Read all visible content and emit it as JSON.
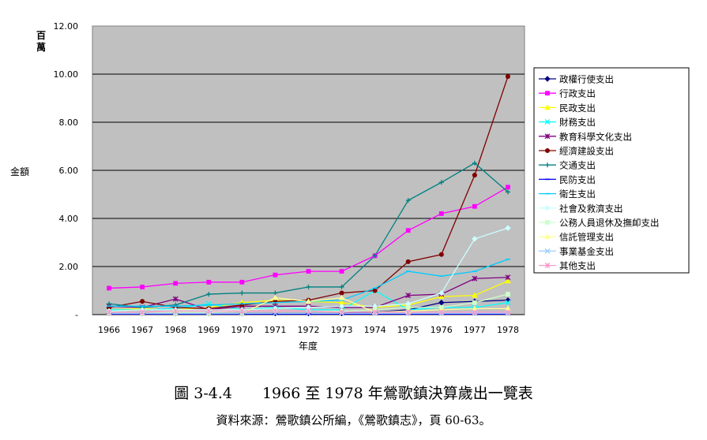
{
  "caption": "圖 3-4.4　　1966 至 1978 年鶯歌鎮決算歲出一覽表",
  "source": "資料來源：鶯歌鎮公所編，《鶯歌鎮志》，頁 60-63。",
  "chart_data": {
    "type": "line",
    "unit_label": "百萬",
    "xlabel": "年度",
    "ylabel": "金額",
    "ylim": [
      0,
      12
    ],
    "y_ticks": [
      0,
      2,
      4,
      6,
      8,
      10,
      12
    ],
    "y_tick_labels": [
      "-",
      "2.00",
      "4.00",
      "6.00",
      "8.00",
      "10.00",
      "12.00"
    ],
    "plot_background": "#c0c0c0",
    "grid": true,
    "legend_position": "right",
    "categories": [
      "1966",
      "1967",
      "1968",
      "1969",
      "1970",
      "1971",
      "1972",
      "1973",
      "1974",
      "1975",
      "1976",
      "1977",
      "1978"
    ],
    "series": [
      {
        "name": "政權行使支出",
        "color": "#000080",
        "marker": "diamond",
        "values": [
          0.05,
          0.05,
          0.05,
          0.05,
          0.05,
          0.05,
          0.05,
          0.05,
          0.1,
          0.2,
          0.5,
          0.55,
          0.6
        ]
      },
      {
        "name": "行政支出",
        "color": "#ff00ff",
        "marker": "square",
        "values": [
          1.1,
          1.15,
          1.3,
          1.35,
          1.35,
          1.65,
          1.8,
          1.8,
          2.45,
          3.5,
          4.2,
          4.5,
          5.3
        ]
      },
      {
        "name": "民政支出",
        "color": "#ffff00",
        "marker": "triangle",
        "values": [
          0.2,
          0.25,
          0.2,
          0.3,
          0.5,
          0.6,
          0.55,
          0.5,
          0.3,
          0.4,
          0.75,
          0.8,
          1.4
        ]
      },
      {
        "name": "財務支出",
        "color": "#00ffff",
        "marker": "x",
        "values": [
          0.2,
          0.2,
          0.25,
          0.45,
          0.2,
          0.3,
          0.2,
          0.2,
          1.0,
          0.2,
          0.3,
          0.3,
          0.5
        ]
      },
      {
        "name": "教育科學文化支出",
        "color": "#800080",
        "marker": "star",
        "values": [
          0.35,
          0.3,
          0.65,
          0.2,
          0.35,
          0.35,
          0.35,
          0.3,
          0.3,
          0.8,
          0.85,
          1.5,
          1.55
        ]
      },
      {
        "name": "經濟建設支出",
        "color": "#800000",
        "marker": "circle",
        "values": [
          0.3,
          0.55,
          0.3,
          0.25,
          0.4,
          0.55,
          0.6,
          0.9,
          1.0,
          2.2,
          2.5,
          5.8,
          9.9
        ]
      },
      {
        "name": "交通支出",
        "color": "#008080",
        "marker": "plus",
        "values": [
          0.45,
          0.3,
          0.4,
          0.85,
          0.9,
          0.9,
          1.15,
          1.15,
          2.45,
          4.75,
          5.5,
          6.3,
          5.1
        ]
      },
      {
        "name": "民防支出",
        "color": "#0000ff",
        "marker": "dash",
        "values": [
          0.02,
          0.02,
          0.02,
          0.02,
          0.02,
          0.02,
          0.02,
          0.02,
          0.02,
          0.02,
          0.02,
          0.02,
          0.02
        ]
      },
      {
        "name": "衛生支出",
        "color": "#00ccff",
        "marker": "dash",
        "values": [
          0.35,
          0.35,
          0.35,
          0.4,
          0.45,
          0.5,
          0.55,
          0.6,
          1.1,
          1.8,
          1.6,
          1.8,
          2.3
        ]
      },
      {
        "name": "社會及救濟支出",
        "color": "#ccffff",
        "marker": "diamond",
        "values": [
          0.15,
          0.2,
          0.2,
          0.2,
          0.2,
          0.25,
          0.3,
          0.35,
          0.35,
          0.45,
          0.9,
          3.15,
          3.6
        ]
      },
      {
        "name": "公務人員退休及撫卹支出",
        "color": "#ccffcc",
        "marker": "square",
        "values": [
          0.1,
          0.1,
          0.1,
          0.1,
          0.15,
          0.15,
          0.15,
          0.15,
          0.2,
          0.3,
          0.3,
          0.5,
          0.85
        ]
      },
      {
        "name": "信託管理支出",
        "color": "#ffff99",
        "marker": "triangle",
        "values": [
          0.05,
          0.05,
          0.05,
          0.05,
          0.05,
          0.7,
          0.55,
          0.7,
          0.1,
          0.15,
          0.2,
          0.25,
          0.25
        ]
      },
      {
        "name": "事業基金支出",
        "color": "#99ccff",
        "marker": "x",
        "values": [
          0.05,
          0.05,
          0.05,
          0.05,
          0.05,
          0.05,
          0.05,
          0.05,
          0.05,
          0.05,
          0.05,
          0.05,
          0.05
        ]
      },
      {
        "name": "其他支出",
        "color": "#ff99cc",
        "marker": "star",
        "values": [
          0.1,
          0.1,
          0.15,
          0.15,
          0.15,
          0.15,
          0.15,
          0.1,
          0.1,
          0.1,
          0.1,
          0.1,
          0.1
        ]
      }
    ]
  }
}
